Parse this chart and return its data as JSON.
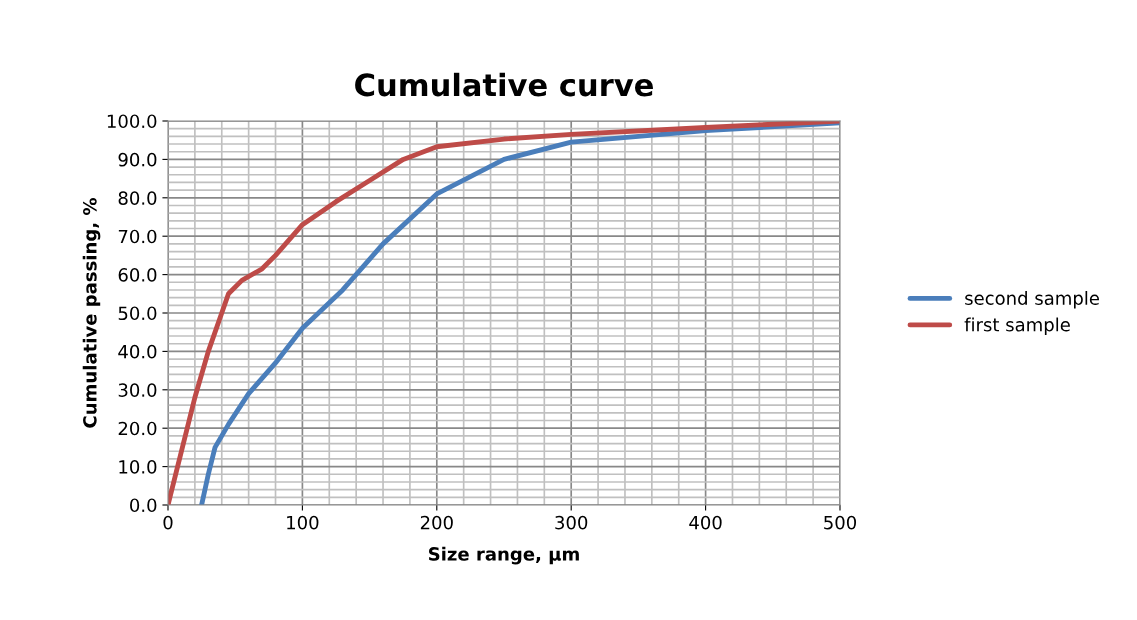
{
  "chart_data": {
    "type": "line",
    "title": "Cumulative curve",
    "xlabel": "Size range, µm",
    "ylabel": "Cumulative passing, %",
    "xlim": [
      0,
      500
    ],
    "xticks": [
      0,
      100,
      200,
      300,
      400,
      500
    ],
    "ylim": [
      0,
      100
    ],
    "yticks": [
      {
        "value": 0,
        "label": "0.0"
      },
      {
        "value": 10,
        "label": "10.0"
      },
      {
        "value": 20,
        "label": "20.0"
      },
      {
        "value": 30,
        "label": "30.0"
      },
      {
        "value": 40,
        "label": "40.0"
      },
      {
        "value": 50,
        "label": "50.0"
      },
      {
        "value": 60,
        "label": "60.0"
      },
      {
        "value": 70,
        "label": "70.0"
      },
      {
        "value": 80,
        "label": "80.0"
      },
      {
        "value": 90,
        "label": "90.0"
      },
      {
        "value": 100,
        "label": "100.0"
      }
    ],
    "grid": true,
    "legend": "right",
    "marker": "none",
    "line_style": "solid",
    "series": [
      {
        "name": "second sample",
        "color": "#4a7ebb",
        "x": [
          25,
          30,
          35,
          45,
          60,
          80,
          100,
          130,
          160,
          200,
          250,
          300,
          400,
          500
        ],
        "values": [
          0,
          8,
          15,
          21,
          29,
          37,
          46,
          56,
          68,
          81,
          90,
          94.5,
          97.5,
          99.5
        ]
      },
      {
        "name": "first sample",
        "color": "#be4b48",
        "x": [
          0,
          20,
          30,
          40,
          45,
          55,
          70,
          80,
          100,
          125,
          150,
          175,
          200,
          250,
          300,
          400,
          500
        ],
        "values": [
          0,
          28,
          40,
          50,
          55,
          58.5,
          61.5,
          65,
          73,
          79,
          84.5,
          90,
          93.3,
          95.3,
          96.5,
          98.3,
          100
        ]
      }
    ]
  }
}
